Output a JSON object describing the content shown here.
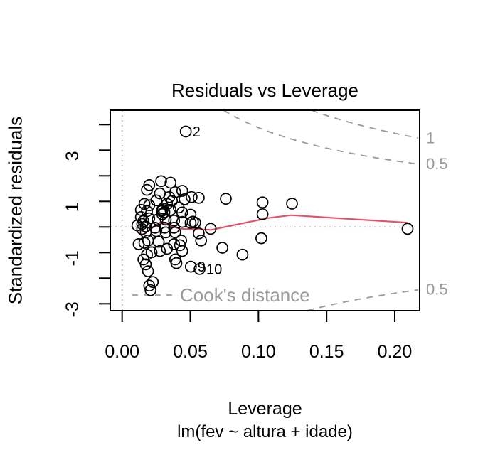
{
  "figure": {
    "title": "Residuals vs Leverage",
    "x_axis_label": "Leverage",
    "y_axis_label": "Standardized residuals",
    "caption": "lm(fev ~ altura + idade)"
  },
  "chart_data": {
    "type": "scatter",
    "title": "Residuals vs Leverage",
    "xlabel": "Leverage",
    "ylabel": "Standardized residuals",
    "xlim": [
      -0.0087,
      0.2183
    ],
    "ylim": [
      -3.269,
      4.564
    ],
    "grid": false,
    "x_ticks": {
      "values": [
        0,
        0.05,
        0.1,
        0.15,
        0.2
      ],
      "labels": [
        "0.00",
        "0.05",
        "0.10",
        "0.15",
        "0.20"
      ]
    },
    "y_ticks": {
      "values": [
        -3,
        -2,
        -1,
        0,
        1,
        2,
        3,
        4
      ],
      "labeled_values": [
        -3,
        -1,
        1,
        3
      ],
      "labels": [
        "-3",
        "-1",
        "1",
        "3"
      ]
    },
    "reference_lines": {
      "horizontal_at": 0,
      "vertical_at": 0
    },
    "points": [
      [
        0.0286,
        1.79
      ],
      [
        0.0355,
        1.73
      ],
      [
        0.0199,
        1.64
      ],
      [
        0.0182,
        1.45
      ],
      [
        0.0277,
        1.31
      ],
      [
        0.0389,
        1.36
      ],
      [
        0.0441,
        1.41
      ],
      [
        0.0251,
        1.04
      ],
      [
        0.0346,
        1.17
      ],
      [
        0.0458,
        1.08
      ],
      [
        0.051,
        1.17
      ],
      [
        0.0562,
        1.14
      ],
      [
        0.0761,
        1.1
      ],
      [
        0.103,
        0.96
      ],
      [
        0.1246,
        0.91
      ],
      [
        0.103,
        0.5
      ],
      [
        0.0164,
        0.9
      ],
      [
        0.0199,
        0.85
      ],
      [
        0.0138,
        0.67
      ],
      [
        0.0182,
        0.62
      ],
      [
        0.0294,
        0.67
      ],
      [
        0.0355,
        0.67
      ],
      [
        0.0415,
        0.76
      ],
      [
        0.0441,
        0.57
      ],
      [
        0.0502,
        0.48
      ],
      [
        0.0138,
        0.39
      ],
      [
        0.0199,
        0.34
      ],
      [
        0.026,
        0.29
      ],
      [
        0.032,
        0.29
      ],
      [
        0.0381,
        0.25
      ],
      [
        0.0441,
        0.2
      ],
      [
        0.0502,
        0.16
      ],
      [
        0.0519,
        0.21
      ],
      [
        0.0536,
        0.17
      ],
      [
        0.0112,
        0.06
      ],
      [
        0.0173,
        0.02
      ],
      [
        0.0242,
        -0.03
      ],
      [
        0.0312,
        -0.03
      ],
      [
        0.0381,
        -0.03
      ],
      [
        0.0649,
        -0.07
      ],
      [
        0.2094,
        -0.07
      ],
      [
        0.0173,
        -0.21
      ],
      [
        0.0251,
        -0.16
      ],
      [
        0.032,
        -0.21
      ],
      [
        0.0389,
        -0.21
      ],
      [
        0.0562,
        -0.25
      ],
      [
        0.019,
        -0.53
      ],
      [
        0.0268,
        -0.58
      ],
      [
        0.0433,
        -0.53
      ],
      [
        0.0579,
        -0.53
      ],
      [
        0.1021,
        -0.44
      ],
      [
        0.0121,
        -0.67
      ],
      [
        0.0164,
        -0.62
      ],
      [
        0.0216,
        -0.99
      ],
      [
        0.0277,
        -0.94
      ],
      [
        0.0182,
        -1.08
      ],
      [
        0.0156,
        -1.27
      ],
      [
        0.0173,
        -1.46
      ],
      [
        0.0329,
        -0.85
      ],
      [
        0.0381,
        -0.67
      ],
      [
        0.0424,
        -0.71
      ],
      [
        0.0441,
        -0.94
      ],
      [
        0.0389,
        -1.27
      ],
      [
        0.0398,
        -1.41
      ],
      [
        0.0735,
        -0.81
      ],
      [
        0.0883,
        -1.08
      ],
      [
        0.019,
        -1.73
      ],
      [
        0.0225,
        -2.15
      ],
      [
        0.0199,
        -2.29
      ],
      [
        0.0208,
        -2.47
      ],
      [
        0.029,
        0.62
      ],
      [
        0.03,
        0.72
      ],
      [
        0.031,
        0.58
      ],
      [
        0.0295,
        0.5
      ],
      [
        0.0147,
        0.12
      ],
      [
        0.0156,
        0.23
      ],
      [
        0.0147,
        -0.08
      ],
      [
        0.0365,
        1.02
      ],
      [
        0.033,
        0.9
      ]
    ],
    "labeled_points": [
      {
        "label": "2",
        "x": 0.0467,
        "y": 3.73
      },
      {
        "label": "9",
        "x": 0.0504,
        "y": -1.55
      },
      {
        "label": "10",
        "x": 0.0568,
        "y": -1.64
      }
    ],
    "smooth_line": {
      "name": "red smoother",
      "points": [
        [
          0.0139,
          -0.34
        ],
        [
          0.0287,
          0.21
        ],
        [
          0.0339,
          0.07
        ],
        [
          0.0426,
          -0.07
        ],
        [
          0.0652,
          -0.11
        ],
        [
          0.0861,
          0.12
        ],
        [
          0.107,
          0.35
        ],
        [
          0.124,
          0.46
        ],
        [
          0.2094,
          0.17
        ]
      ]
    },
    "cooks_distance": {
      "legend_text": "Cook's distance",
      "levels": [
        0.5,
        1
      ],
      "level_labels": [
        "0.5",
        "1"
      ],
      "coef": 3.35
    },
    "legend_position": "bottom-inside"
  },
  "colors": {
    "point_stroke": "#000000",
    "smooth_line": "#DF536B",
    "contour": "#999999",
    "muted_text": "#9a9a9a",
    "reference_line": "#b5b5b5",
    "axis": "#000000",
    "background": "#ffffff"
  }
}
